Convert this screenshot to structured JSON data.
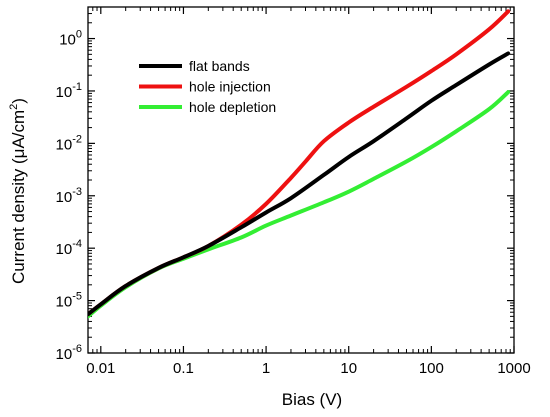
{
  "chart_data": {
    "type": "line",
    "xlabel": "Bias (V)",
    "ylabel": "Current density (μA/cm",
    "ylabel_sup": "2",
    "ylabel_tail": ")",
    "x_scale": "log",
    "y_scale": "log",
    "xlim": [
      0.007,
      1000
    ],
    "ylim": [
      1e-06,
      4
    ],
    "x_ticks": [
      {
        "value": 0.01,
        "label": "0.01"
      },
      {
        "value": 0.1,
        "label": "0.1"
      },
      {
        "value": 1,
        "label": "1"
      },
      {
        "value": 10,
        "label": "10"
      },
      {
        "value": 100,
        "label": "100"
      },
      {
        "value": 1000,
        "label": "1000"
      }
    ],
    "y_ticks": [
      {
        "value": 1e-06,
        "base": "10",
        "exp": "-6"
      },
      {
        "value": 1e-05,
        "base": "10",
        "exp": "-5"
      },
      {
        "value": 0.0001,
        "base": "10",
        "exp": "-4"
      },
      {
        "value": 0.001,
        "base": "10",
        "exp": "-3"
      },
      {
        "value": 0.01,
        "base": "10",
        "exp": "-2"
      },
      {
        "value": 0.1,
        "base": "10",
        "exp": "-1"
      },
      {
        "value": 1,
        "base": "10",
        "exp": "0"
      }
    ],
    "grid": false,
    "legend_position": "top-left",
    "series": [
      {
        "name": "flat bands",
        "color": "#000000",
        "x": [
          0.007,
          0.01,
          0.02,
          0.05,
          0.1,
          0.2,
          0.5,
          1,
          2,
          5,
          10,
          20,
          50,
          100,
          200,
          500,
          850
        ],
        "y": [
          5.5e-06,
          8.5e-06,
          1.9e-05,
          4.2e-05,
          6.7e-05,
          0.00011,
          0.00025,
          0.00048,
          0.0009,
          0.0025,
          0.0055,
          0.011,
          0.03,
          0.065,
          0.13,
          0.32,
          0.52
        ]
      },
      {
        "name": "hole injection",
        "color": "#ee1111",
        "x": [
          0.007,
          0.01,
          0.02,
          0.05,
          0.1,
          0.2,
          0.5,
          1,
          2,
          3,
          5,
          10,
          20,
          50,
          100,
          200,
          500,
          850
        ],
        "y": [
          5.5e-06,
          8.5e-06,
          1.9e-05,
          4.2e-05,
          6.7e-05,
          0.00011,
          0.00028,
          0.0007,
          0.0022,
          0.0045,
          0.011,
          0.025,
          0.05,
          0.12,
          0.24,
          0.5,
          1.5,
          3.3
        ]
      },
      {
        "name": "hole depletion",
        "color": "#33ee33",
        "x": [
          0.007,
          0.01,
          0.02,
          0.05,
          0.1,
          0.2,
          0.5,
          1,
          2,
          5,
          10,
          20,
          50,
          100,
          200,
          500,
          850
        ],
        "y": [
          5e-06,
          8e-06,
          1.8e-05,
          4.1e-05,
          6.3e-05,
          9.5e-05,
          0.00016,
          0.00027,
          0.00042,
          0.00075,
          0.0012,
          0.0021,
          0.0045,
          0.0085,
          0.017,
          0.045,
          0.095
        ]
      }
    ]
  }
}
